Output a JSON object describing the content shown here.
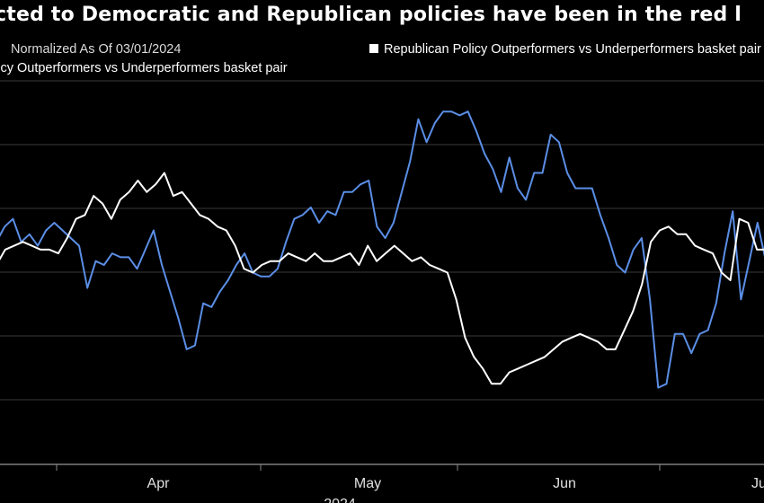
{
  "chart_data": {
    "type": "line",
    "title": "cted to Democratic and Republican policies have been in the red l",
    "subtitle": "Normalized As Of 03/01/2024",
    "ylabel": "",
    "xlabel": "2024",
    "x_tick_labels": [
      "Apr",
      "May",
      "Jun",
      "Ju"
    ],
    "ylim": [
      0,
      100
    ],
    "series": [
      {
        "name": "licy Outperformers vs Underperformers basket pair",
        "color": "#5b8ee6",
        "values": [
          58,
          62,
          64,
          58,
          60,
          57,
          61,
          63,
          61,
          59,
          57,
          46,
          53,
          52,
          55,
          54,
          54,
          51,
          56,
          61,
          52,
          45,
          38,
          30,
          31,
          42,
          41,
          45,
          48,
          52,
          55,
          50,
          49,
          49,
          51,
          58,
          64,
          65,
          67,
          63,
          66,
          65,
          71,
          71,
          73,
          74,
          62,
          59,
          63,
          71,
          79,
          90,
          84,
          89,
          92,
          92,
          91,
          92,
          87,
          81,
          77,
          71,
          80,
          72,
          69,
          76,
          76,
          86,
          84,
          76,
          72,
          72,
          72,
          65,
          59,
          52,
          50,
          56,
          59,
          43,
          20,
          21,
          34,
          34,
          29,
          34,
          35,
          42,
          55,
          66,
          43,
          53,
          63,
          53
        ]
      },
      {
        "name": "Republican Policy Outperformers vs Underperformers basket pair",
        "color": "#ffffff",
        "values": [
          52,
          56,
          57,
          58,
          57,
          56,
          56,
          55,
          59,
          64,
          65,
          70,
          68,
          64,
          69,
          71,
          74,
          71,
          73,
          76,
          70,
          71,
          68,
          65,
          64,
          62,
          61,
          57,
          51,
          50,
          52,
          53,
          53,
          55,
          54,
          53,
          55,
          53,
          53,
          54,
          55,
          52,
          57,
          53,
          55,
          57,
          55,
          53,
          54,
          52,
          51,
          50,
          43,
          33,
          28,
          25,
          21,
          21,
          24,
          25,
          26,
          27,
          28,
          30,
          32,
          33,
          34,
          33,
          32,
          30,
          30,
          35,
          40,
          47,
          58,
          61,
          62,
          60,
          60,
          57,
          56,
          55,
          50,
          48,
          64,
          63,
          56,
          56
        ]
      }
    ]
  }
}
